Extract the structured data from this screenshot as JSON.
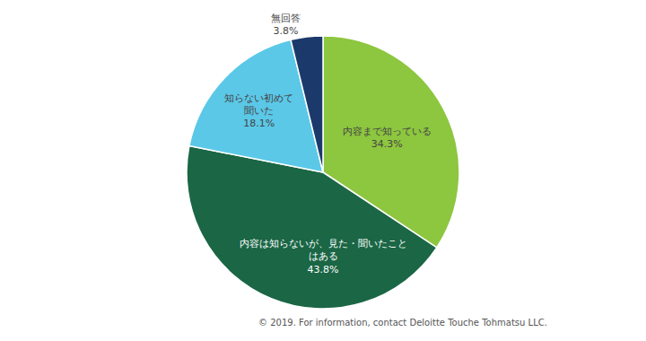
{
  "chart_data": {
    "type": "pie",
    "categories": [
      "内容まで知っている",
      "内容は知らないが、見た・聞いたこと\nはある",
      "知らない初めて\n聞いた",
      "無回答"
    ],
    "values": [
      34.3,
      43.8,
      18.1,
      3.8
    ],
    "value_labels": [
      "34.3%",
      "43.8%",
      "18.1%",
      "3.8%"
    ],
    "colors": [
      "#8DC63F",
      "#1A6645",
      "#5BC8E8",
      "#1B3A6B"
    ],
    "data_labels": true,
    "annotations": [
      "© 2019. For information, contact Deloitte Touche Tohmatsu LLC."
    ]
  }
}
